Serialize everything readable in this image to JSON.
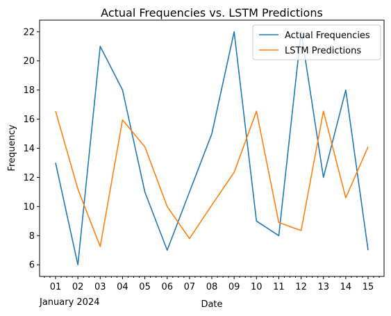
{
  "chart_data": {
    "type": "line",
    "title": "Actual Frequencies vs. LSTM Predictions",
    "xlabel": "Date",
    "ylabel": "Frequency",
    "x_offset_label": "January 2024",
    "x": [
      "01",
      "02",
      "03",
      "04",
      "05",
      "06",
      "07",
      "08",
      "09",
      "10",
      "11",
      "12",
      "13",
      "14",
      "15"
    ],
    "yticks": [
      6,
      8,
      10,
      12,
      14,
      16,
      18,
      20,
      22
    ],
    "ylim": [
      5.2,
      22.8
    ],
    "legend_position": "upper-right",
    "grid": false,
    "series": [
      {
        "name": "Actual Frequencies",
        "color": "#1f77b4",
        "values": [
          13,
          6,
          21,
          18,
          11,
          7,
          11,
          15,
          22,
          9,
          8,
          22,
          12,
          18,
          7
        ]
      },
      {
        "name": "LSTM Predictions",
        "color": "#ff7f0e",
        "values": [
          16.55,
          11.2,
          7.25,
          15.95,
          14.1,
          10.0,
          7.8,
          10.1,
          12.35,
          16.55,
          8.9,
          8.35,
          16.55,
          10.6,
          14.1
        ]
      }
    ]
  }
}
